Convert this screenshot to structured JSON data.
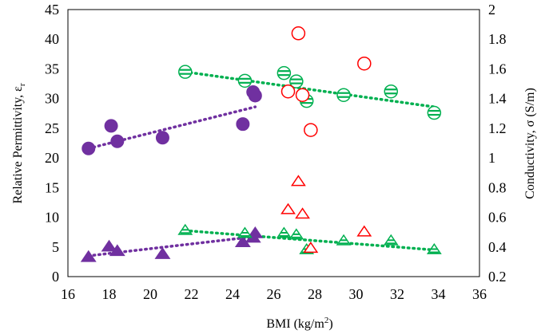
{
  "chart_data": {
    "type": "scatter",
    "title": "",
    "xlabel": {
      "main": "BMI (kg/m",
      "sup": "2",
      "end": ")"
    },
    "ylabel_left": {
      "main": "Relative Permittivity, ε",
      "sub": "r"
    },
    "ylabel_right": "Conductivity, σ (S/m)",
    "xlim": [
      16,
      36
    ],
    "ylim_left": [
      0,
      45
    ],
    "ylim_right": [
      0.2,
      2
    ],
    "x_ticks": [
      "16",
      "18",
      "20",
      "22",
      "24",
      "26",
      "28",
      "30",
      "32",
      "34",
      "36"
    ],
    "y_left_ticks": [
      "0",
      "5",
      "10",
      "15",
      "20",
      "25",
      "30",
      "35",
      "40",
      "45"
    ],
    "y_right_ticks": [
      "0.2",
      "0.4",
      "0.6",
      "0.8",
      "1",
      "1.2",
      "1.4",
      "1.6",
      "1.8",
      "2"
    ],
    "colors": {
      "purple": "#7030A0",
      "green": "#00B050",
      "red": "#FF0000"
    },
    "series": [
      {
        "axis": "left",
        "marker": "circle-filled",
        "color": "#7030A0",
        "x": [
          17.0,
          18.1,
          18.4,
          20.6,
          24.5,
          25.0,
          25.1
        ],
        "y": [
          21.6,
          25.4,
          22.8,
          23.4,
          25.7,
          31.1,
          30.5
        ]
      },
      {
        "axis": "left",
        "marker": "circle-striped",
        "color": "#00B050",
        "x": [
          21.7,
          24.6,
          26.5,
          27.1,
          27.6,
          29.4,
          31.7,
          33.8
        ],
        "y": [
          34.5,
          33.0,
          34.3,
          32.9,
          29.6,
          30.6,
          31.2,
          27.6
        ]
      },
      {
        "axis": "left",
        "marker": "circle-open",
        "color": "#FF0000",
        "x": [
          26.7,
          27.2,
          27.4,
          27.8,
          30.4
        ],
        "y": [
          31.2,
          41.0,
          30.6,
          24.7,
          35.9
        ]
      },
      {
        "axis": "right",
        "marker": "triangle-filled",
        "color": "#7030A0",
        "x": [
          17.0,
          18.0,
          18.4,
          20.6,
          24.5,
          25.0,
          25.1
        ],
        "y": [
          0.33,
          0.4,
          0.37,
          0.35,
          0.43,
          0.46,
          0.49
        ]
      },
      {
        "axis": "right",
        "marker": "triangle-striped",
        "color": "#00B050",
        "x": [
          21.7,
          24.6,
          26.5,
          27.1,
          27.6,
          29.4,
          31.7,
          33.8
        ],
        "y": [
          0.51,
          0.49,
          0.49,
          0.48,
          0.38,
          0.44,
          0.44,
          0.38
        ]
      },
      {
        "axis": "right",
        "marker": "triangle-open",
        "color": "#FF0000",
        "x": [
          26.7,
          27.2,
          27.4,
          27.8,
          30.4
        ],
        "y": [
          0.65,
          0.84,
          0.62,
          0.39,
          0.5
        ]
      }
    ],
    "trendlines": [
      {
        "axis": "left",
        "color": "#7030A0",
        "x": [
          17.0,
          25.1
        ],
        "y": [
          21.6,
          28.6
        ]
      },
      {
        "axis": "left",
        "color": "#00B050",
        "x": [
          21.7,
          33.8
        ],
        "y": [
          34.5,
          28.6
        ]
      },
      {
        "axis": "right",
        "color": "#7030A0",
        "x": [
          17.0,
          25.1
        ],
        "y": [
          0.34,
          0.47
        ]
      },
      {
        "axis": "right",
        "color": "#00B050",
        "x": [
          21.7,
          33.8
        ],
        "y": [
          0.51,
          0.38
        ]
      }
    ],
    "grid": false,
    "legend": "none"
  }
}
